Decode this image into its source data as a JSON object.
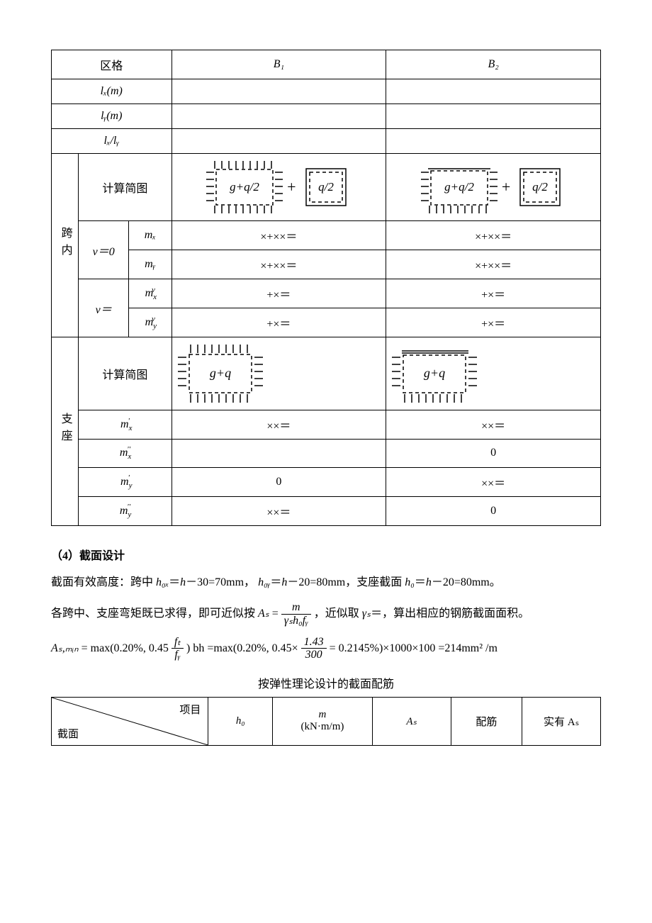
{
  "table1": {
    "hdr_zone": "区格",
    "hdr_b1": "B₁",
    "hdr_b2": "B₂",
    "row_lx": "lₓ(m)",
    "row_ly": "lᵧ(m)",
    "row_lxly": "lₓ/lᵧ",
    "span_label": "跨内",
    "support_label": "支座",
    "calc_diag": "计算简图",
    "nu0": "ν＝0",
    "nu": "ν＝",
    "mx": "mₓ",
    "my": "mᵧ",
    "mxv_html": "<i>m</i><span class='sub'>x</span><span class='sup' style='margin-left:-7px;'>ν</span>",
    "myv_html": "<i>m</i><span class='sub'>y</span><span class='sup' style='margin-left:-7px;'>ν</span>",
    "mxp_html": "<i>m</i><span class='sub'>x</span><span class='sup' style='margin-left:-6px;'>'</span>",
    "mxpp_html": "<i>m</i><span class='sub'>x</span><span class='sup' style='margin-left:-6px;'>''</span>",
    "myp_html": "<i>m</i><span class='sub'>y</span><span class='sup' style='margin-left:-6px;'>'</span>",
    "mypp_html": "<i>m</i><span class='sub'>y</span><span class='sup' style='margin-left:-6px;'>''</span>",
    "expr_xxx": "×+××＝",
    "expr_px": "+×＝",
    "expr_xx": "××＝",
    "zero": "0",
    "gq2": "g+q/2",
    "q2": "q/2",
    "gq": "g+q"
  },
  "sec4": {
    "title": "（4）截面设计",
    "p1_a": "截面有效高度：跨中 ",
    "p1_b": "＝",
    "p1_c": "－30=70mm，",
    "p1_d": "－20=80mm，支座截面 ",
    "p1_e": "－20=80mm。",
    "h0x": "h₀ₓ",
    "h0y": "h₀ᵧ",
    "h0": "h₀",
    "h": "h",
    "p2_a": "各跨中、支座弯矩既已求得，即可近似按 ",
    "p2_b": " ，近似取 ",
    "p2_c": "＝，算出相应的钢筋截面面积。",
    "As": "Aₛ",
    "gamma_s": "γₛ",
    "formula_main_num": "m",
    "formula_main_den": "γₛh₀fᵧ",
    "p3_a": "= max(0.20%, 0.45",
    "p3_b": ") bh =max(0.20%, 0.45×",
    "p3_c": " = 0.2145%)×1000×100 =214mm² /m",
    "Asmin": "Aₛ,ₘᵢₙ",
    "ft": "fₜ",
    "fy": "fᵧ",
    "num2": "1.43",
    "den2": "300"
  },
  "table2": {
    "title": "按弹性理论设计的截面配筋",
    "diag_tr": "项目",
    "diag_bl": "截面",
    "c1": "h₀",
    "c2a": "m",
    "c2b": "(kN·m/m)",
    "c3": "Aₛ",
    "c4": "配筋",
    "c5": "实有 Aₛ"
  },
  "svg": {
    "stroke": "#000000",
    "dash": "5,4"
  }
}
